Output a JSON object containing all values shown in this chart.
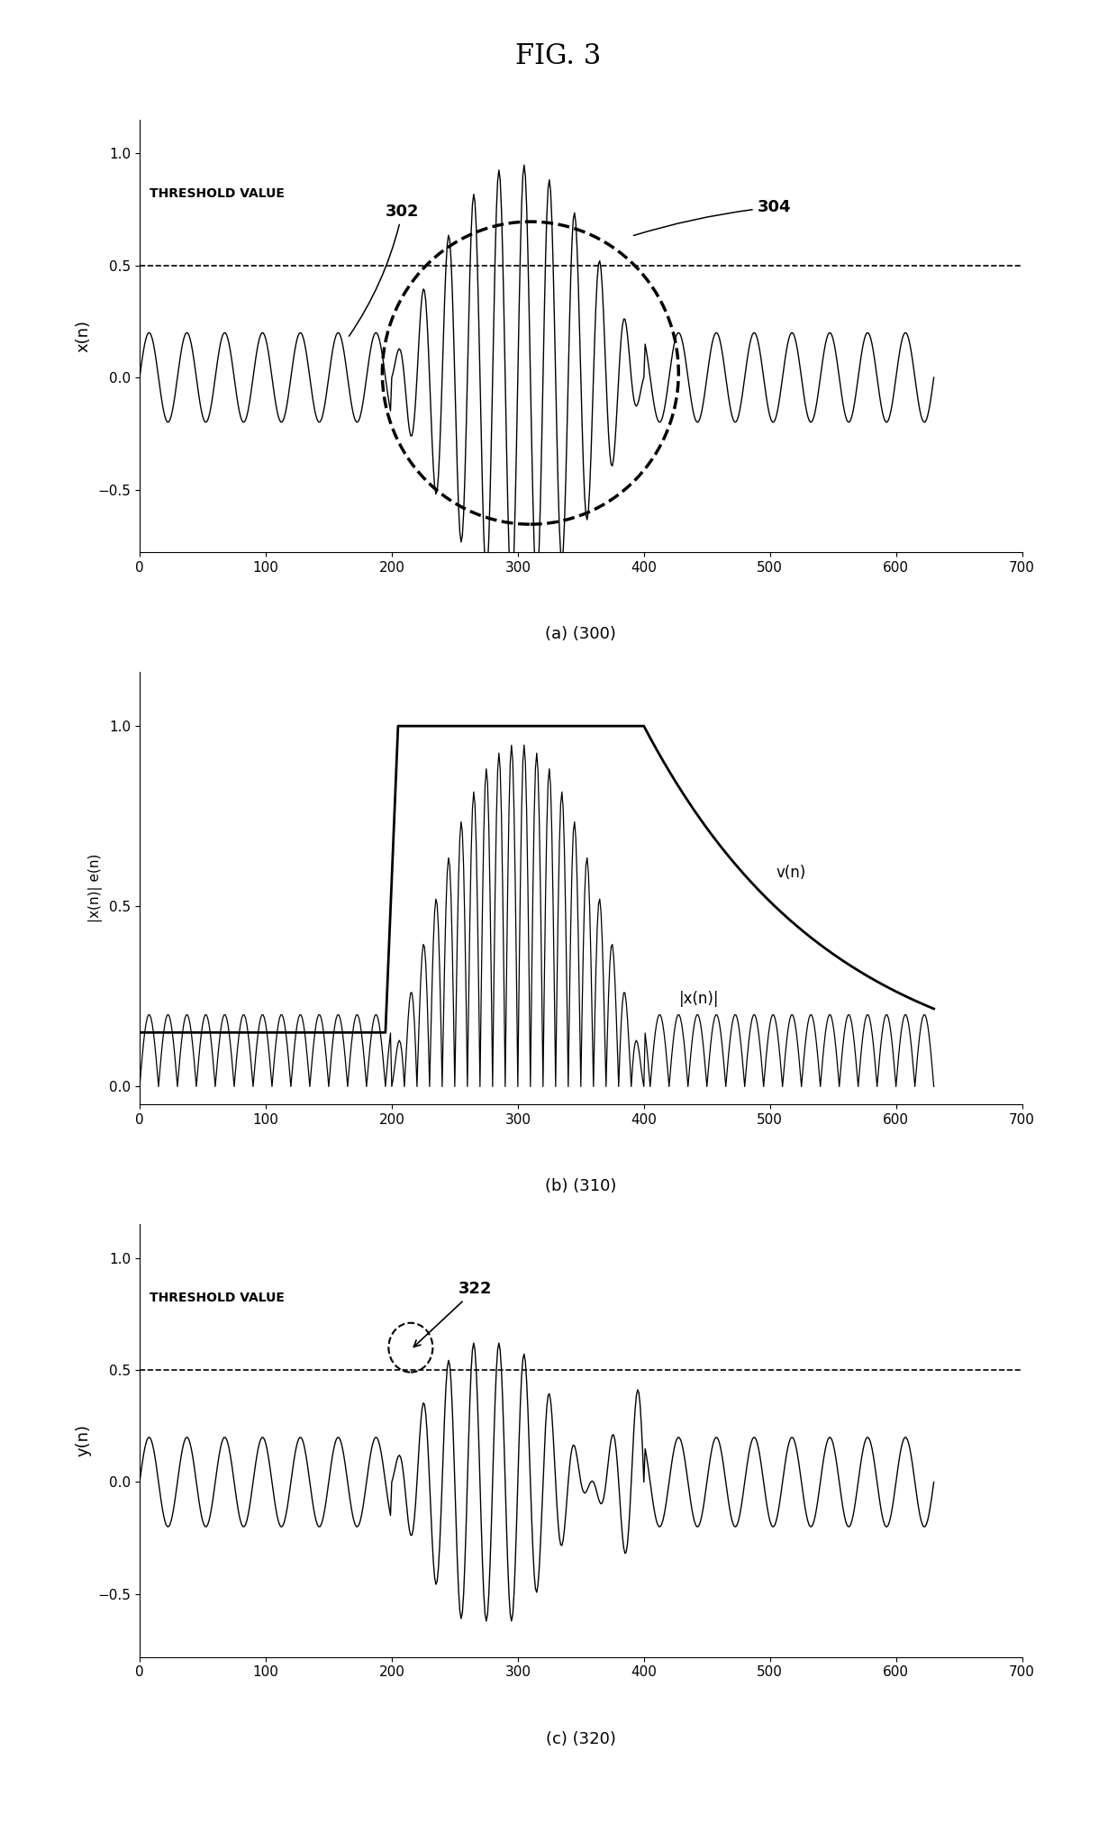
{
  "title": "FIG. 3",
  "subplot_labels": [
    "(a) (300)",
    "(b) (310)",
    "(c) (320)"
  ],
  "xlim": [
    0,
    700
  ],
  "xticks": [
    0,
    100,
    200,
    300,
    400,
    500,
    600,
    700
  ],
  "threshold": 0.5,
  "threshold_label": "THRESHOLD VALUE",
  "fig_width": 12.4,
  "fig_height": 20.44,
  "dpi": 100,
  "background_color": "#ffffff",
  "line_color": "#000000",
  "label_302": "302",
  "label_304": "304",
  "label_322": "322",
  "ylabel_a": "x(n)",
  "ylabel_b": "|x(n)| e(n)",
  "ylabel_c": "y(n)",
  "ylim_a": [
    -0.78,
    1.15
  ],
  "ylim_b": [
    -0.05,
    1.15
  ],
  "ylim_c": [
    -0.78,
    1.15
  ],
  "yticks_a": [
    -0.5,
    0,
    0.5,
    1
  ],
  "yticks_b": [
    0,
    0.5,
    1
  ],
  "yticks_c": [
    -0.5,
    0,
    0.5,
    1
  ]
}
